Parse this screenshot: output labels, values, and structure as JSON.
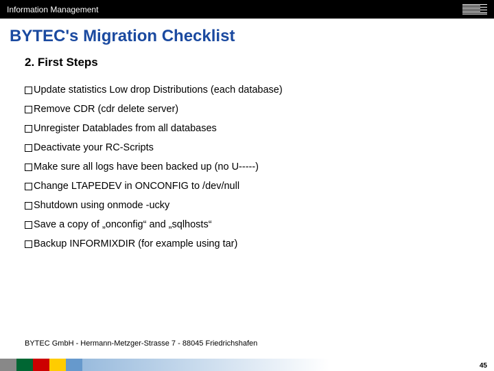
{
  "header": {
    "category": "Information Management",
    "logo_alt": "IBM"
  },
  "title": "BYTEC's Migration Checklist",
  "subtitle": "2. First Steps",
  "checklist": [
    "Update statistics Low drop Distributions (each database)",
    "Remove CDR (cdr delete server)",
    "Unregister  Datablades from all databases",
    "Deactivate your RC-Scripts",
    "Make sure all logs have been backed up (no U-----)",
    "Change LTAPEDEV in ONCONFIG to /dev/null",
    "Shutdown using  onmode -ucky",
    "Save a copy of „onconfig“ and „sqlhosts“",
    "Backup INFORMIXDIR (for example using tar)"
  ],
  "footer": "BYTEC GmbH  -  Hermann-Metzger-Strasse 7  -  88045 Friedrichshafen",
  "page_number": "45",
  "colors": {
    "title": "#1b4aa0",
    "header_bg": "#000000",
    "header_fg": "#ffffff"
  }
}
